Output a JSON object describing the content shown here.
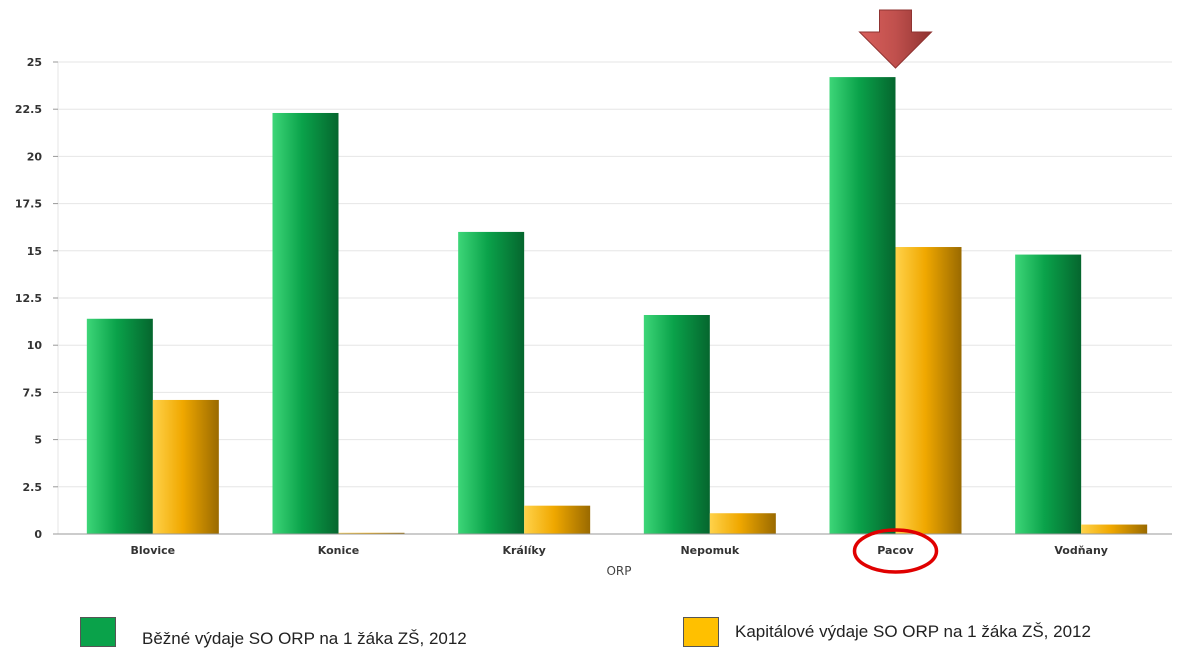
{
  "chart_data": {
    "type": "bar",
    "xlabel": "ORP",
    "ylabel": "",
    "ylim": [
      0,
      25
    ],
    "yticks": [
      "0",
      "2.5",
      "5",
      "7.5",
      "10",
      "12.5",
      "15",
      "17.5",
      "20",
      "22.5",
      "25"
    ],
    "categories": [
      "Blovice",
      "Konice",
      "Králíky",
      "Nepomuk",
      "Pacov",
      "Vodňany"
    ],
    "series": [
      {
        "name": "Běžné výdaje SO ORP na 1 žáka ZŠ, 2012",
        "values": [
          11.4,
          22.3,
          16.0,
          11.6,
          24.2,
          14.8
        ]
      },
      {
        "name": "Kapitálové výdaje SO ORP na 1 žáka ZŠ, 2012",
        "values": [
          7.1,
          0.05,
          1.5,
          1.1,
          15.2,
          0.5
        ]
      }
    ],
    "grid": true,
    "legend_position": "bottom",
    "colors": {
      "series1": "#0aa24a",
      "series2": "#f0a800",
      "arrow": "#c0504d",
      "circle": "#e00000"
    },
    "annotations": [
      {
        "type": "arrow-down",
        "category": "Pacov"
      },
      {
        "type": "circle",
        "category": "Pacov"
      }
    ]
  }
}
